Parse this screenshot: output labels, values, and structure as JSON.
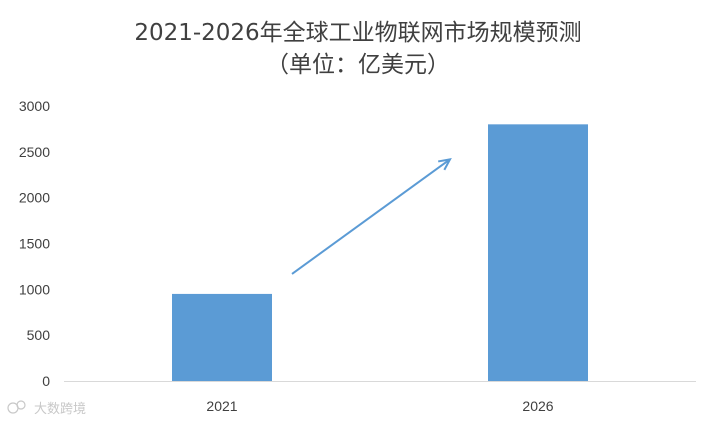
{
  "chart_data": {
    "type": "bar",
    "title": "2021-2026年全球工业物联网市场规模预测",
    "subtitle": "（单位：亿美元）",
    "categories": [
      "2021",
      "2026"
    ],
    "values": [
      950,
      2800
    ],
    "xlabel": "",
    "ylabel": "",
    "ylim": [
      0,
      3000
    ],
    "yticks": [
      0,
      500,
      1000,
      1500,
      2000,
      2500,
      3000
    ],
    "grid": false,
    "legend": "none",
    "annotation": "upward trend arrow from 2021 bar toward 2026 bar",
    "colors": {
      "bar": "#5b9bd5",
      "arrow": "#5b9bd5",
      "axis": "#d9d9d9"
    }
  },
  "watermark": {
    "text": "大数跨境",
    "icon": "wechat-logo-icon"
  }
}
